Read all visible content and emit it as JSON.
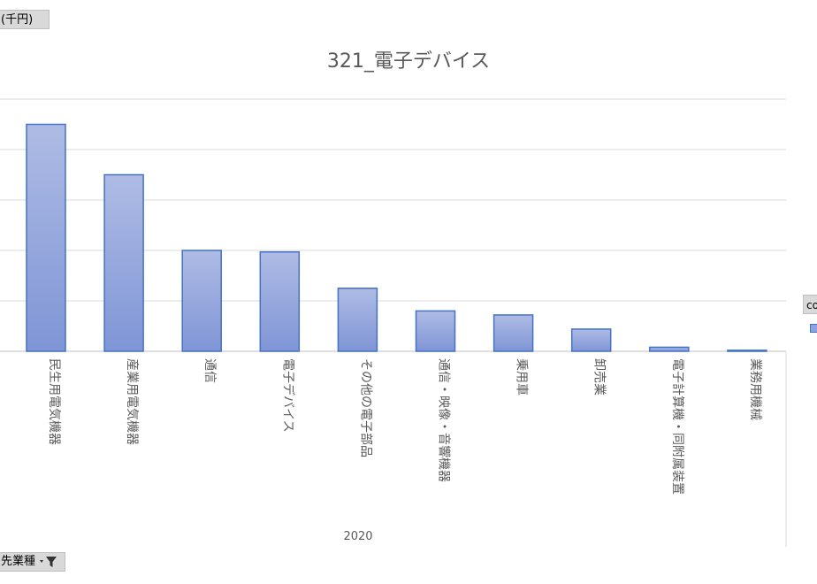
{
  "value_field_button": {
    "label": "(千円)"
  },
  "row_field_button": {
    "label": "先業種"
  },
  "legend": {
    "label": "co"
  },
  "colors": {
    "bar_fill_top": "#aebbe4",
    "bar_fill_bottom": "#7f95d6",
    "bar_stroke": "#4472c4",
    "gridline": "#d9d9d9",
    "axis": "#bfbfbf",
    "title": "#595959",
    "label": "#595959"
  },
  "chart_data": {
    "type": "bar",
    "title": "321_電子デバイス",
    "xlabel": "2020",
    "ylabel": "",
    "categories": [
      "民生用電気機器",
      "産業用電気機器",
      "通信",
      "電子デバイス",
      "その他の電子部品",
      "通信・映像・音響機器",
      "乗用車",
      "卸売業",
      "電子計算機・同附属装置",
      "業務用機械"
    ],
    "values": [
      4.5,
      3.5,
      2.0,
      1.97,
      1.25,
      0.8,
      0.72,
      0.44,
      0.08,
      0.02
    ],
    "ylim": [
      0,
      5
    ],
    "gridlines": [
      0,
      1,
      2,
      3,
      4,
      5
    ],
    "grid": true
  }
}
